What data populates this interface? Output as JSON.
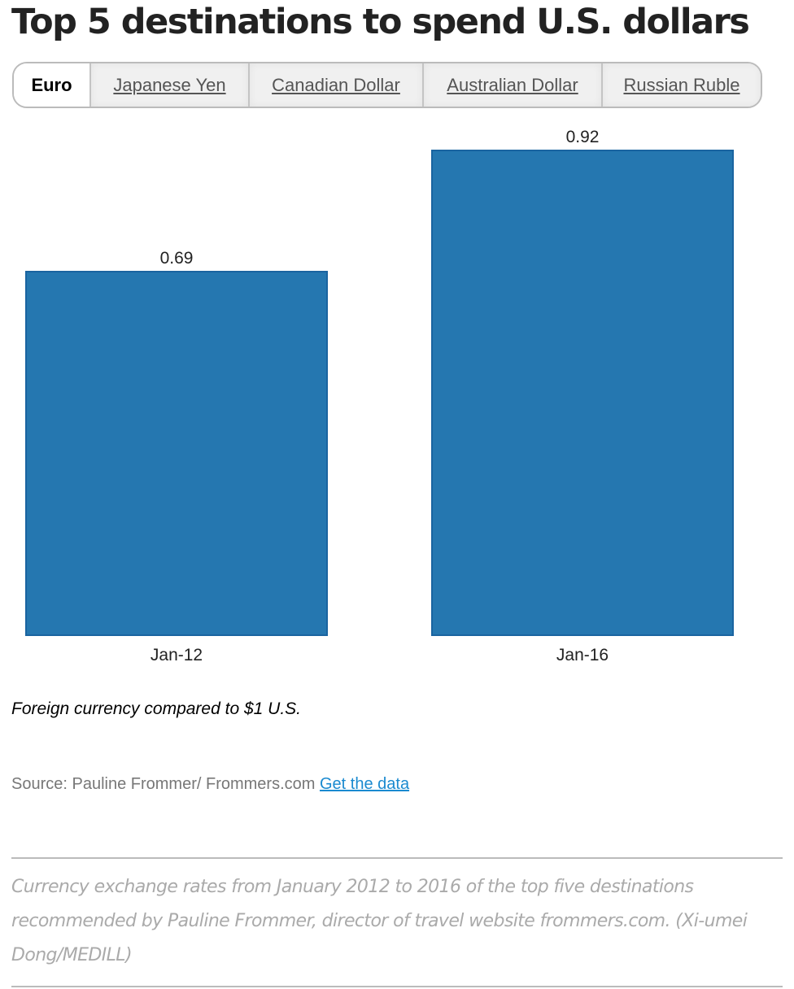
{
  "title": "Top 5 destinations to spend U.S. dollars",
  "tabs": [
    {
      "label": "Euro",
      "active": true
    },
    {
      "label": "Japanese Yen",
      "active": false
    },
    {
      "label": "Canadian Dollar",
      "active": false
    },
    {
      "label": "Australian Dollar",
      "active": false
    },
    {
      "label": "Russian Ruble",
      "active": false
    }
  ],
  "chart_data": {
    "type": "bar",
    "categories": [
      "Jan-12",
      "Jan-16"
    ],
    "values": [
      0.69,
      0.92
    ],
    "data_labels": [
      "0.69",
      "0.92"
    ],
    "ylim": [
      0,
      0.92
    ],
    "grid": false,
    "bar_color": "#2577b0",
    "bar_edge_color": "#1a64a0"
  },
  "note": "Foreign currency compared to $1 U.S.",
  "source": {
    "text": "Source: Pauline Frommer/ Frommers.com",
    "link": "Get the data",
    "link_color": "#1a8ad0"
  },
  "caption": "Currency exchange rates from January 2012 to 2016 of the top five destinations recommended by Pauline Frommer, director of travel website frommers.com. (Xi-umei Dong/MEDILL)"
}
